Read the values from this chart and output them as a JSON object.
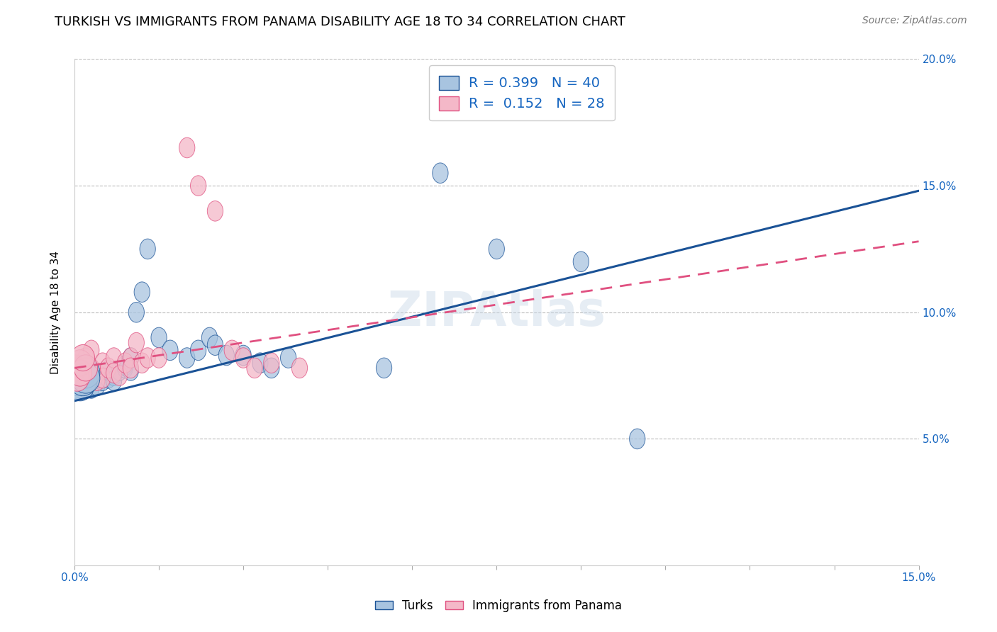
{
  "title": "TURKISH VS IMMIGRANTS FROM PANAMA DISABILITY AGE 18 TO 34 CORRELATION CHART",
  "source": "Source: ZipAtlas.com",
  "ylabel": "Disability Age 18 to 34",
  "xlim": [
    0.0,
    0.15
  ],
  "ylim": [
    0.0,
    0.2
  ],
  "r_turks": 0.399,
  "n_turks": 40,
  "r_panama": 0.152,
  "n_panama": 28,
  "turks_color": "#a8c4e0",
  "panama_color": "#f4b8c8",
  "turks_line_color": "#1a5296",
  "panama_line_color": "#e05080",
  "legend_text_color": "#1565c0",
  "watermark": "ZIPAtlas",
  "turks_scatter_x": [
    0.001,
    0.001,
    0.002,
    0.002,
    0.003,
    0.003,
    0.003,
    0.004,
    0.004,
    0.004,
    0.005,
    0.005,
    0.006,
    0.006,
    0.007,
    0.007,
    0.008,
    0.009,
    0.009,
    0.01,
    0.01,
    0.011,
    0.012,
    0.013,
    0.015,
    0.017,
    0.02,
    0.022,
    0.024,
    0.025,
    0.027,
    0.03,
    0.033,
    0.035,
    0.038,
    0.055,
    0.065,
    0.075,
    0.09,
    0.1
  ],
  "turks_scatter_y": [
    0.075,
    0.072,
    0.078,
    0.074,
    0.073,
    0.07,
    0.077,
    0.076,
    0.071,
    0.075,
    0.073,
    0.076,
    0.074,
    0.077,
    0.075,
    0.073,
    0.077,
    0.078,
    0.079,
    0.082,
    0.077,
    0.1,
    0.108,
    0.125,
    0.09,
    0.085,
    0.082,
    0.085,
    0.09,
    0.087,
    0.083,
    0.083,
    0.08,
    0.078,
    0.082,
    0.078,
    0.155,
    0.125,
    0.12,
    0.05
  ],
  "panama_scatter_x": [
    0.001,
    0.002,
    0.002,
    0.003,
    0.003,
    0.004,
    0.004,
    0.005,
    0.005,
    0.006,
    0.007,
    0.007,
    0.008,
    0.009,
    0.01,
    0.01,
    0.011,
    0.012,
    0.013,
    0.015,
    0.02,
    0.022,
    0.025,
    0.028,
    0.03,
    0.032,
    0.035,
    0.04
  ],
  "panama_scatter_y": [
    0.078,
    0.082,
    0.072,
    0.085,
    0.078,
    0.076,
    0.073,
    0.08,
    0.074,
    0.078,
    0.082,
    0.076,
    0.075,
    0.08,
    0.082,
    0.078,
    0.088,
    0.08,
    0.082,
    0.082,
    0.165,
    0.15,
    0.14,
    0.085,
    0.082,
    0.078,
    0.08,
    0.078
  ],
  "turks_line_y0": 0.065,
  "turks_line_y1": 0.148,
  "panama_line_y0": 0.078,
  "panama_line_y1": 0.128
}
